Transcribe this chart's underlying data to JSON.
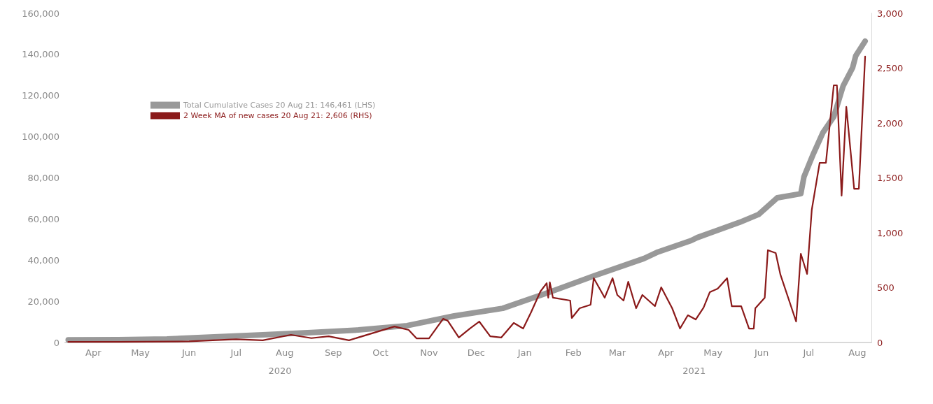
{
  "chart_data": {
    "type": "line",
    "xlim": [
      "2020-03-28",
      "2021-08-24"
    ],
    "xticks": [
      {
        "value": "2020-04-15",
        "label": "Apr"
      },
      {
        "value": "2020-05-15",
        "label": "May"
      },
      {
        "value": "2020-06-15",
        "label": "Jun"
      },
      {
        "value": "2020-07-15",
        "label": "Jul"
      },
      {
        "value": "2020-08-15",
        "label": "Aug"
      },
      {
        "value": "2020-09-15",
        "label": "Sep"
      },
      {
        "value": "2020-10-15",
        "label": "Oct"
      },
      {
        "value": "2020-11-15",
        "label": "Nov"
      },
      {
        "value": "2020-12-15",
        "label": "Dec"
      },
      {
        "value": "2021-01-15",
        "label": "Jan"
      },
      {
        "value": "2021-02-15",
        "label": "Feb"
      },
      {
        "value": "2021-03-15",
        "label": "Mar"
      },
      {
        "value": "2021-04-15",
        "label": "Apr"
      },
      {
        "value": "2021-05-15",
        "label": "May"
      },
      {
        "value": "2021-06-15",
        "label": "Jun"
      },
      {
        "value": "2021-07-15",
        "label": "Jul"
      },
      {
        "value": "2021-08-15",
        "label": "Aug"
      }
    ],
    "x2lim": [
      "2020-03-28",
      "2021-08-24"
    ],
    "x2ticks": [
      {
        "value": "2020-08-12",
        "label": "2020"
      },
      {
        "value": "2021-05-03",
        "label": "2021"
      }
    ],
    "ylim": [
      0,
      160000
    ],
    "yticks": [
      0,
      {
        "value": 20000,
        "label": "20,000"
      },
      {
        "value": 40000,
        "label": "40,000"
      },
      {
        "value": 60000,
        "label": "60,000"
      },
      {
        "value": 80000,
        "label": "80,000"
      },
      {
        "value": 100000,
        "label": "100,000"
      },
      {
        "value": 120000,
        "label": "120,000"
      },
      {
        "value": 140000,
        "label": "140,000"
      },
      {
        "value": 160000,
        "label": "160,000"
      }
    ],
    "y2lim": [
      0,
      3000
    ],
    "y2ticks": [
      0,
      500,
      {
        "value": 1000,
        "label": "1,000"
      },
      {
        "value": 1500,
        "label": "1,500"
      },
      {
        "value": 2000,
        "label": "2,000"
      },
      {
        "value": 2500,
        "label": "2,500"
      },
      {
        "value": 3000,
        "label": "3,000"
      }
    ],
    "grid": false,
    "legend": "top left",
    "marker": "none",
    "series": [
      {
        "name": "Total Cumulative Cases 20 Aug 21: 146,461 (LHS)",
        "color": "#999999",
        "x": [
          "2020-03-30",
          "2020-05-01",
          "2020-06-01",
          "2020-07-01",
          "2020-08-01",
          "2020-09-01",
          "2020-10-01",
          "2020-11-01",
          "2020-12-01",
          "2021-01-01",
          "2021-02-01",
          "2021-03-01",
          "2021-04-01",
          "2021-04-10",
          "2021-05-01",
          "2021-05-05",
          "2021-06-01",
          "2021-06-13",
          "2021-06-25",
          "2021-07-10",
          "2021-07-12",
          "2021-07-18",
          "2021-07-24",
          "2021-07-31",
          "2021-08-06",
          "2021-08-12",
          "2021-08-14",
          "2021-08-20"
        ],
        "values": [
          1300,
          1400,
          1700,
          2700,
          3700,
          4800,
          6100,
          8200,
          12900,
          16600,
          24800,
          32600,
          40800,
          44000,
          49500,
          51000,
          58400,
          62200,
          70300,
          72300,
          80500,
          91700,
          101900,
          109700,
          124700,
          133500,
          139300,
          146461
        ]
      },
      {
        "name": "2 Week MA of new cases 20 Aug 21: 2,606 (RHS)",
        "color": "#8b1a1a",
        "axis": "y2",
        "x": [
          "2020-03-30",
          "2020-05-01",
          "2020-06-15",
          "2020-07-15",
          "2020-08-01",
          "2020-08-19",
          "2020-09-01",
          "2020-09-12",
          "2020-09-25",
          "2020-10-24",
          "2020-11-02",
          "2020-11-07",
          "2020-11-15",
          "2020-11-24",
          "2020-11-27",
          "2020-12-04",
          "2020-12-11",
          "2020-12-17",
          "2020-12-24",
          "2020-12-31",
          "2021-01-08",
          "2021-01-14",
          "2021-01-19",
          "2021-01-25",
          "2021-01-29",
          "2021-01-30",
          "2021-01-31",
          "2021-02-02",
          "2021-02-13",
          "2021-02-14",
          "2021-02-19",
          "2021-02-26",
          "2021-02-28",
          "2021-03-07",
          "2021-03-12",
          "2021-03-15",
          "2021-03-19",
          "2021-03-22",
          "2021-03-27",
          "2021-03-31",
          "2021-04-08",
          "2021-04-12",
          "2021-04-19",
          "2021-04-24",
          "2021-04-29",
          "2021-05-04",
          "2021-05-09",
          "2021-05-13",
          "2021-05-18",
          "2021-05-24",
          "2021-05-27",
          "2021-06-02",
          "2021-06-07",
          "2021-06-10",
          "2021-06-11",
          "2021-06-17",
          "2021-06-19",
          "2021-06-24",
          "2021-06-27",
          "2021-07-03",
          "2021-07-07",
          "2021-07-10",
          "2021-07-14",
          "2021-07-17",
          "2021-07-22",
          "2021-07-26",
          "2021-07-31",
          "2021-08-02",
          "2021-08-05",
          "2021-08-08",
          "2021-08-11",
          "2021-08-13",
          "2021-08-16",
          "2021-08-20"
        ],
        "values": [
          5,
          5,
          10,
          30,
          20,
          70,
          40,
          57,
          20,
          146,
          115,
          38,
          38,
          216,
          197,
          45,
          127,
          191,
          57,
          45,
          178,
          127,
          274,
          465,
          541,
          408,
          548,
          408,
          382,
          223,
          312,
          344,
          586,
          408,
          586,
          433,
          382,
          554,
          312,
          433,
          331,
          503,
          312,
          127,
          248,
          210,
          318,
          459,
          490,
          586,
          331,
          331,
          127,
          127,
          312,
          408,
          841,
          815,
          618,
          363,
          191,
          809,
          624,
          1210,
          1637,
          1637,
          2344,
          2344,
          1338,
          2147,
          1701,
          1401,
          1401,
          2606
        ]
      }
    ]
  }
}
